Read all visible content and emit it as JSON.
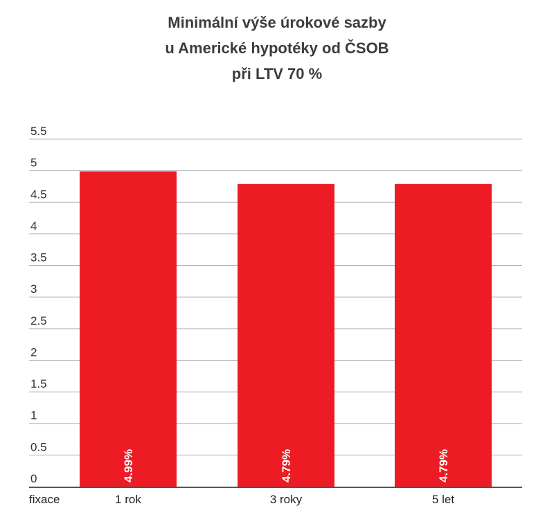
{
  "chart_data": {
    "type": "bar",
    "title_lines": [
      "Minimální výše úrokové sazby",
      "u Americké hypotéky od ČSOB",
      "při LTV 70 %"
    ],
    "xlabel": "fixace",
    "ylabel": "",
    "categories": [
      "1 rok",
      "3 roky",
      "5 let"
    ],
    "values": [
      4.99,
      4.79,
      4.79
    ],
    "data_labels": [
      "4.99%",
      "4.79%",
      "4.79%"
    ],
    "ylim": [
      0,
      5.5
    ],
    "yticks": [
      "0",
      "0.5",
      "1",
      "1.5",
      "2",
      "2.5",
      "3",
      "3.5",
      "4",
      "4.5",
      "5",
      "5.5"
    ],
    "grid": true,
    "colors": {
      "bar": "#ED1C24",
      "grid": "#b4b4b4",
      "axis": "#555555"
    }
  }
}
